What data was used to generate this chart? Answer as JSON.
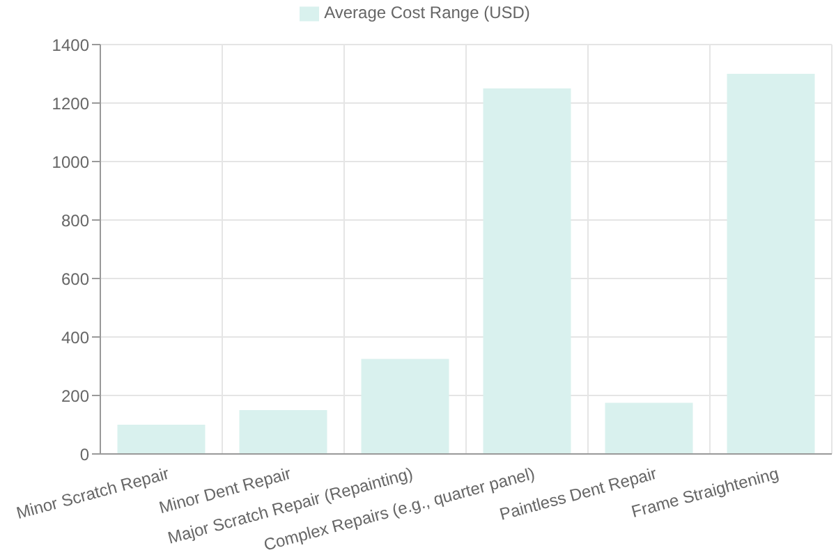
{
  "chart_data": {
    "type": "bar",
    "categories": [
      "Minor Scratch Repair",
      "Minor Dent Repair",
      "Major Scratch Repair (Repainting)",
      "Complex Repairs (e.g., quarter panel)",
      "Paintless Dent Repair",
      "Frame Straightening"
    ],
    "series": [
      {
        "name": "Average Cost Range (USD)",
        "color": "#d9f1ee",
        "values": [
          100,
          150,
          325,
          1250,
          175,
          1300
        ]
      }
    ],
    "ylim": [
      0,
      1400
    ],
    "yticks": [
      0,
      200,
      400,
      600,
      800,
      1000,
      1200,
      1400
    ],
    "grid": true,
    "legend": "top"
  }
}
